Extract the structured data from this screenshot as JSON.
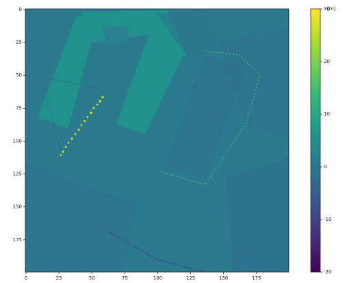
{
  "chart_data": {
    "type": "heatmap",
    "xlim": [
      -0.5,
      199.5
    ],
    "ylim": [
      199.5,
      -0.5
    ],
    "xticks": [
      0,
      25,
      50,
      75,
      100,
      125,
      150,
      175
    ],
    "yticks": [
      0,
      25,
      50,
      75,
      100,
      125,
      150,
      175
    ],
    "colorbar": {
      "label": "[m]",
      "lim": [
        -20,
        30
      ],
      "ticks": [
        -20,
        -10,
        0,
        10,
        20,
        30
      ],
      "colormap": "viridis"
    }
  }
}
